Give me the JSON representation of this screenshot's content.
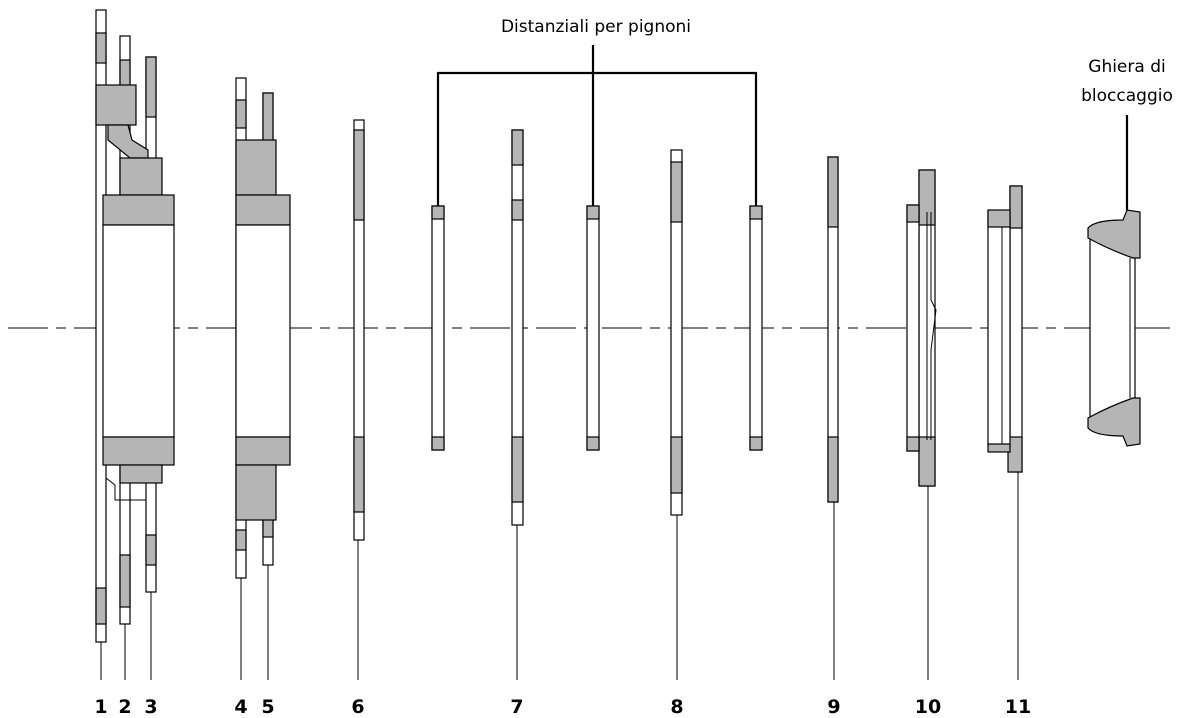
{
  "callouts": [
    {
      "label": "Distanziali per pignoni"
    },
    {
      "label_lines": [
        "Ghiera di",
        "bloccaggio"
      ]
    }
  ],
  "part_numbers": [
    "1",
    "2",
    "3",
    "4",
    "5",
    "6",
    "7",
    "8",
    "9",
    "10",
    "11"
  ]
}
